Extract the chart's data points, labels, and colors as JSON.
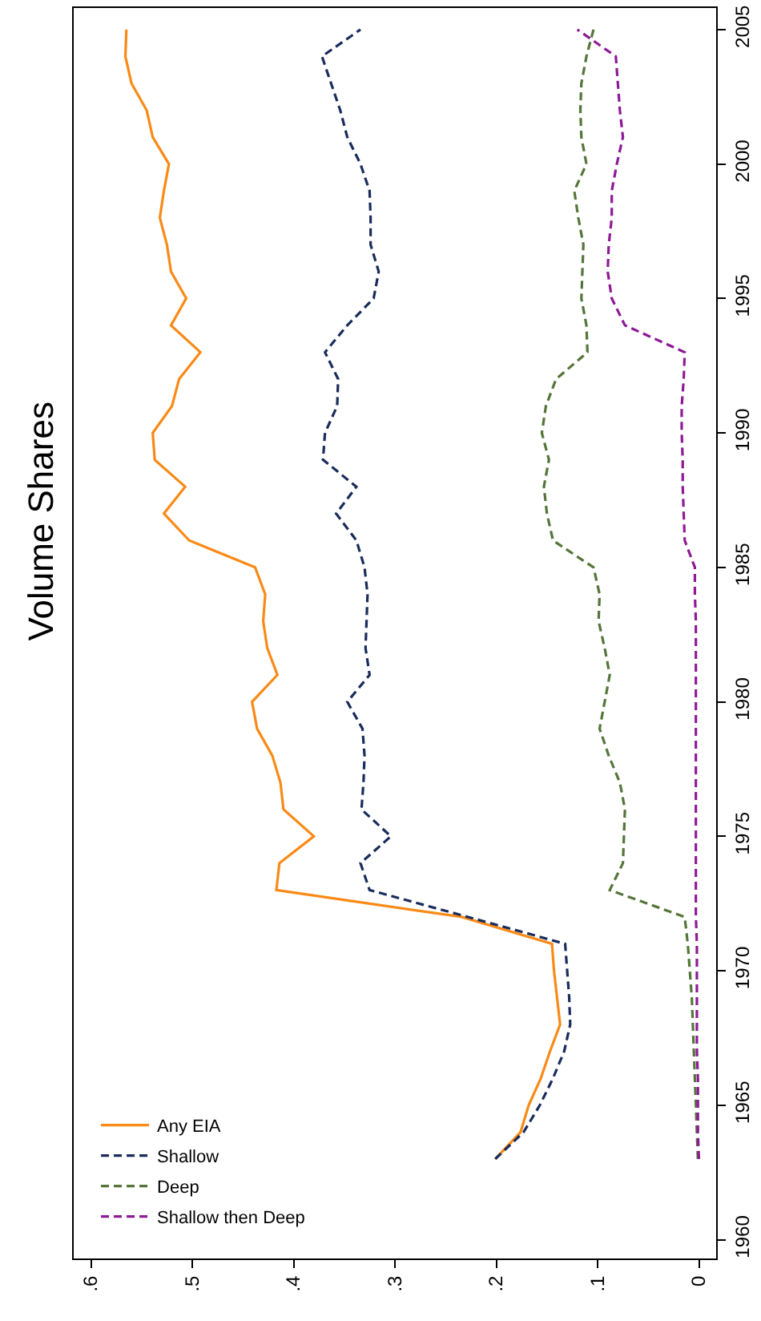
{
  "chart_data": {
    "type": "line",
    "title": "Volume Shares",
    "series": [
      {
        "name": "Any EIA",
        "color": "#f98a16",
        "line_style": "solid",
        "x": [
          0.201,
          0.176,
          0.168,
          0.156,
          0.147,
          0.137,
          0.14,
          0.143,
          0.145,
          0.234,
          0.417,
          0.414,
          0.38,
          0.41,
          0.413,
          0.421,
          0.436,
          0.441,
          0.416,
          0.426,
          0.43,
          0.428,
          0.438,
          0.503,
          0.528,
          0.507,
          0.537,
          0.539,
          0.52,
          0.513,
          0.492,
          0.521,
          0.506,
          0.521,
          0.525,
          0.532,
          0.528,
          0.523,
          0.539,
          0.545,
          0.56,
          0.566,
          0.565
        ],
        "values": [
          1963,
          1964,
          1965,
          1966,
          1967,
          1968,
          1969,
          1970,
          1971,
          1972,
          1973,
          1974,
          1975,
          1976,
          1977,
          1978,
          1979,
          1980,
          1981,
          1982,
          1983,
          1984,
          1985,
          1986,
          1987,
          1988,
          1989,
          1990,
          1991,
          1992,
          1993,
          1994,
          1995,
          1996,
          1997,
          1998,
          1999,
          2000,
          2001,
          2002,
          2003,
          2004,
          2005
        ]
      },
      {
        "name": "Shallow",
        "color": "#1a2c5b",
        "line_style": "dashed",
        "x": [
          0.201,
          0.173,
          0.157,
          0.144,
          0.133,
          0.127,
          0.128,
          0.13,
          0.132,
          0.228,
          0.325,
          0.334,
          0.304,
          0.333,
          0.331,
          0.33,
          0.332,
          0.347,
          0.325,
          0.329,
          0.328,
          0.327,
          0.33,
          0.338,
          0.358,
          0.338,
          0.371,
          0.369,
          0.357,
          0.356,
          0.369,
          0.347,
          0.321,
          0.316,
          0.324,
          0.324,
          0.325,
          0.334,
          0.347,
          0.354,
          0.363,
          0.372,
          0.334
        ],
        "values": [
          1963,
          1964,
          1965,
          1966,
          1967,
          1968,
          1969,
          1970,
          1971,
          1972,
          1973,
          1974,
          1975,
          1976,
          1977,
          1978,
          1979,
          1980,
          1981,
          1982,
          1983,
          1984,
          1985,
          1986,
          1987,
          1988,
          1989,
          1990,
          1991,
          1992,
          1993,
          1994,
          1995,
          1996,
          1997,
          1998,
          1999,
          2000,
          2001,
          2002,
          2003,
          2004,
          2005
        ]
      },
      {
        "name": "Deep",
        "color": "#55753a",
        "line_style": "dashed",
        "x": [
          0.001,
          0.002,
          0.003,
          0.004,
          0.005,
          0.006,
          0.007,
          0.009,
          0.011,
          0.014,
          0.088,
          0.075,
          0.074,
          0.073,
          0.078,
          0.089,
          0.098,
          0.093,
          0.088,
          0.093,
          0.099,
          0.098,
          0.104,
          0.144,
          0.15,
          0.153,
          0.148,
          0.155,
          0.151,
          0.141,
          0.11,
          0.111,
          0.116,
          0.115,
          0.114,
          0.119,
          0.123,
          0.111,
          0.116,
          0.117,
          0.116,
          0.111,
          0.104
        ],
        "values": [
          1963,
          1964,
          1965,
          1966,
          1967,
          1968,
          1969,
          1970,
          1971,
          1972,
          1973,
          1974,
          1975,
          1976,
          1977,
          1978,
          1979,
          1980,
          1981,
          1982,
          1983,
          1984,
          1985,
          1986,
          1987,
          1988,
          1989,
          1990,
          1991,
          1992,
          1993,
          1994,
          1995,
          1996,
          1997,
          1998,
          1999,
          2000,
          2001,
          2002,
          2003,
          2004,
          2005
        ]
      },
      {
        "name": "Shallow then Deep",
        "color": "#8e1a96",
        "line_style": "dashed",
        "x": [
          0.0,
          0.001,
          0.001,
          0.001,
          0.002,
          0.002,
          0.002,
          0.002,
          0.002,
          0.003,
          0.003,
          0.003,
          0.003,
          0.003,
          0.003,
          0.003,
          0.003,
          0.003,
          0.003,
          0.003,
          0.003,
          0.004,
          0.004,
          0.014,
          0.015,
          0.016,
          0.016,
          0.017,
          0.017,
          0.015,
          0.014,
          0.073,
          0.086,
          0.09,
          0.089,
          0.086,
          0.086,
          0.081,
          0.075,
          0.078,
          0.08,
          0.082,
          0.12
        ],
        "values": [
          1963,
          1964,
          1965,
          1966,
          1967,
          1968,
          1969,
          1970,
          1971,
          1972,
          1973,
          1974,
          1975,
          1976,
          1977,
          1978,
          1979,
          1980,
          1981,
          1982,
          1983,
          1984,
          1985,
          1986,
          1987,
          1988,
          1989,
          1990,
          1991,
          1992,
          1993,
          1994,
          1995,
          1996,
          1997,
          1998,
          1999,
          2000,
          2001,
          2002,
          2003,
          2004,
          2005
        ]
      }
    ],
    "ylim": [
      1959.3,
      2005.8
    ],
    "yticks": [
      1960,
      1965,
      1970,
      1975,
      1980,
      1985,
      1990,
      1995,
      2000,
      2005
    ],
    "xlim": [
      0.617,
      -0.017
    ],
    "xticks": [
      {
        "value": 0.6,
        "label": ".6"
      },
      {
        "value": 0.5,
        "label": ".5"
      },
      {
        "value": 0.4,
        "label": ".4"
      },
      {
        "value": 0.3,
        "label": ".3"
      },
      {
        "value": 0.2,
        "label": ".2"
      },
      {
        "value": 0.1,
        "label": ".1"
      },
      0
    ],
    "legend": "bottom left",
    "marker": "none"
  }
}
